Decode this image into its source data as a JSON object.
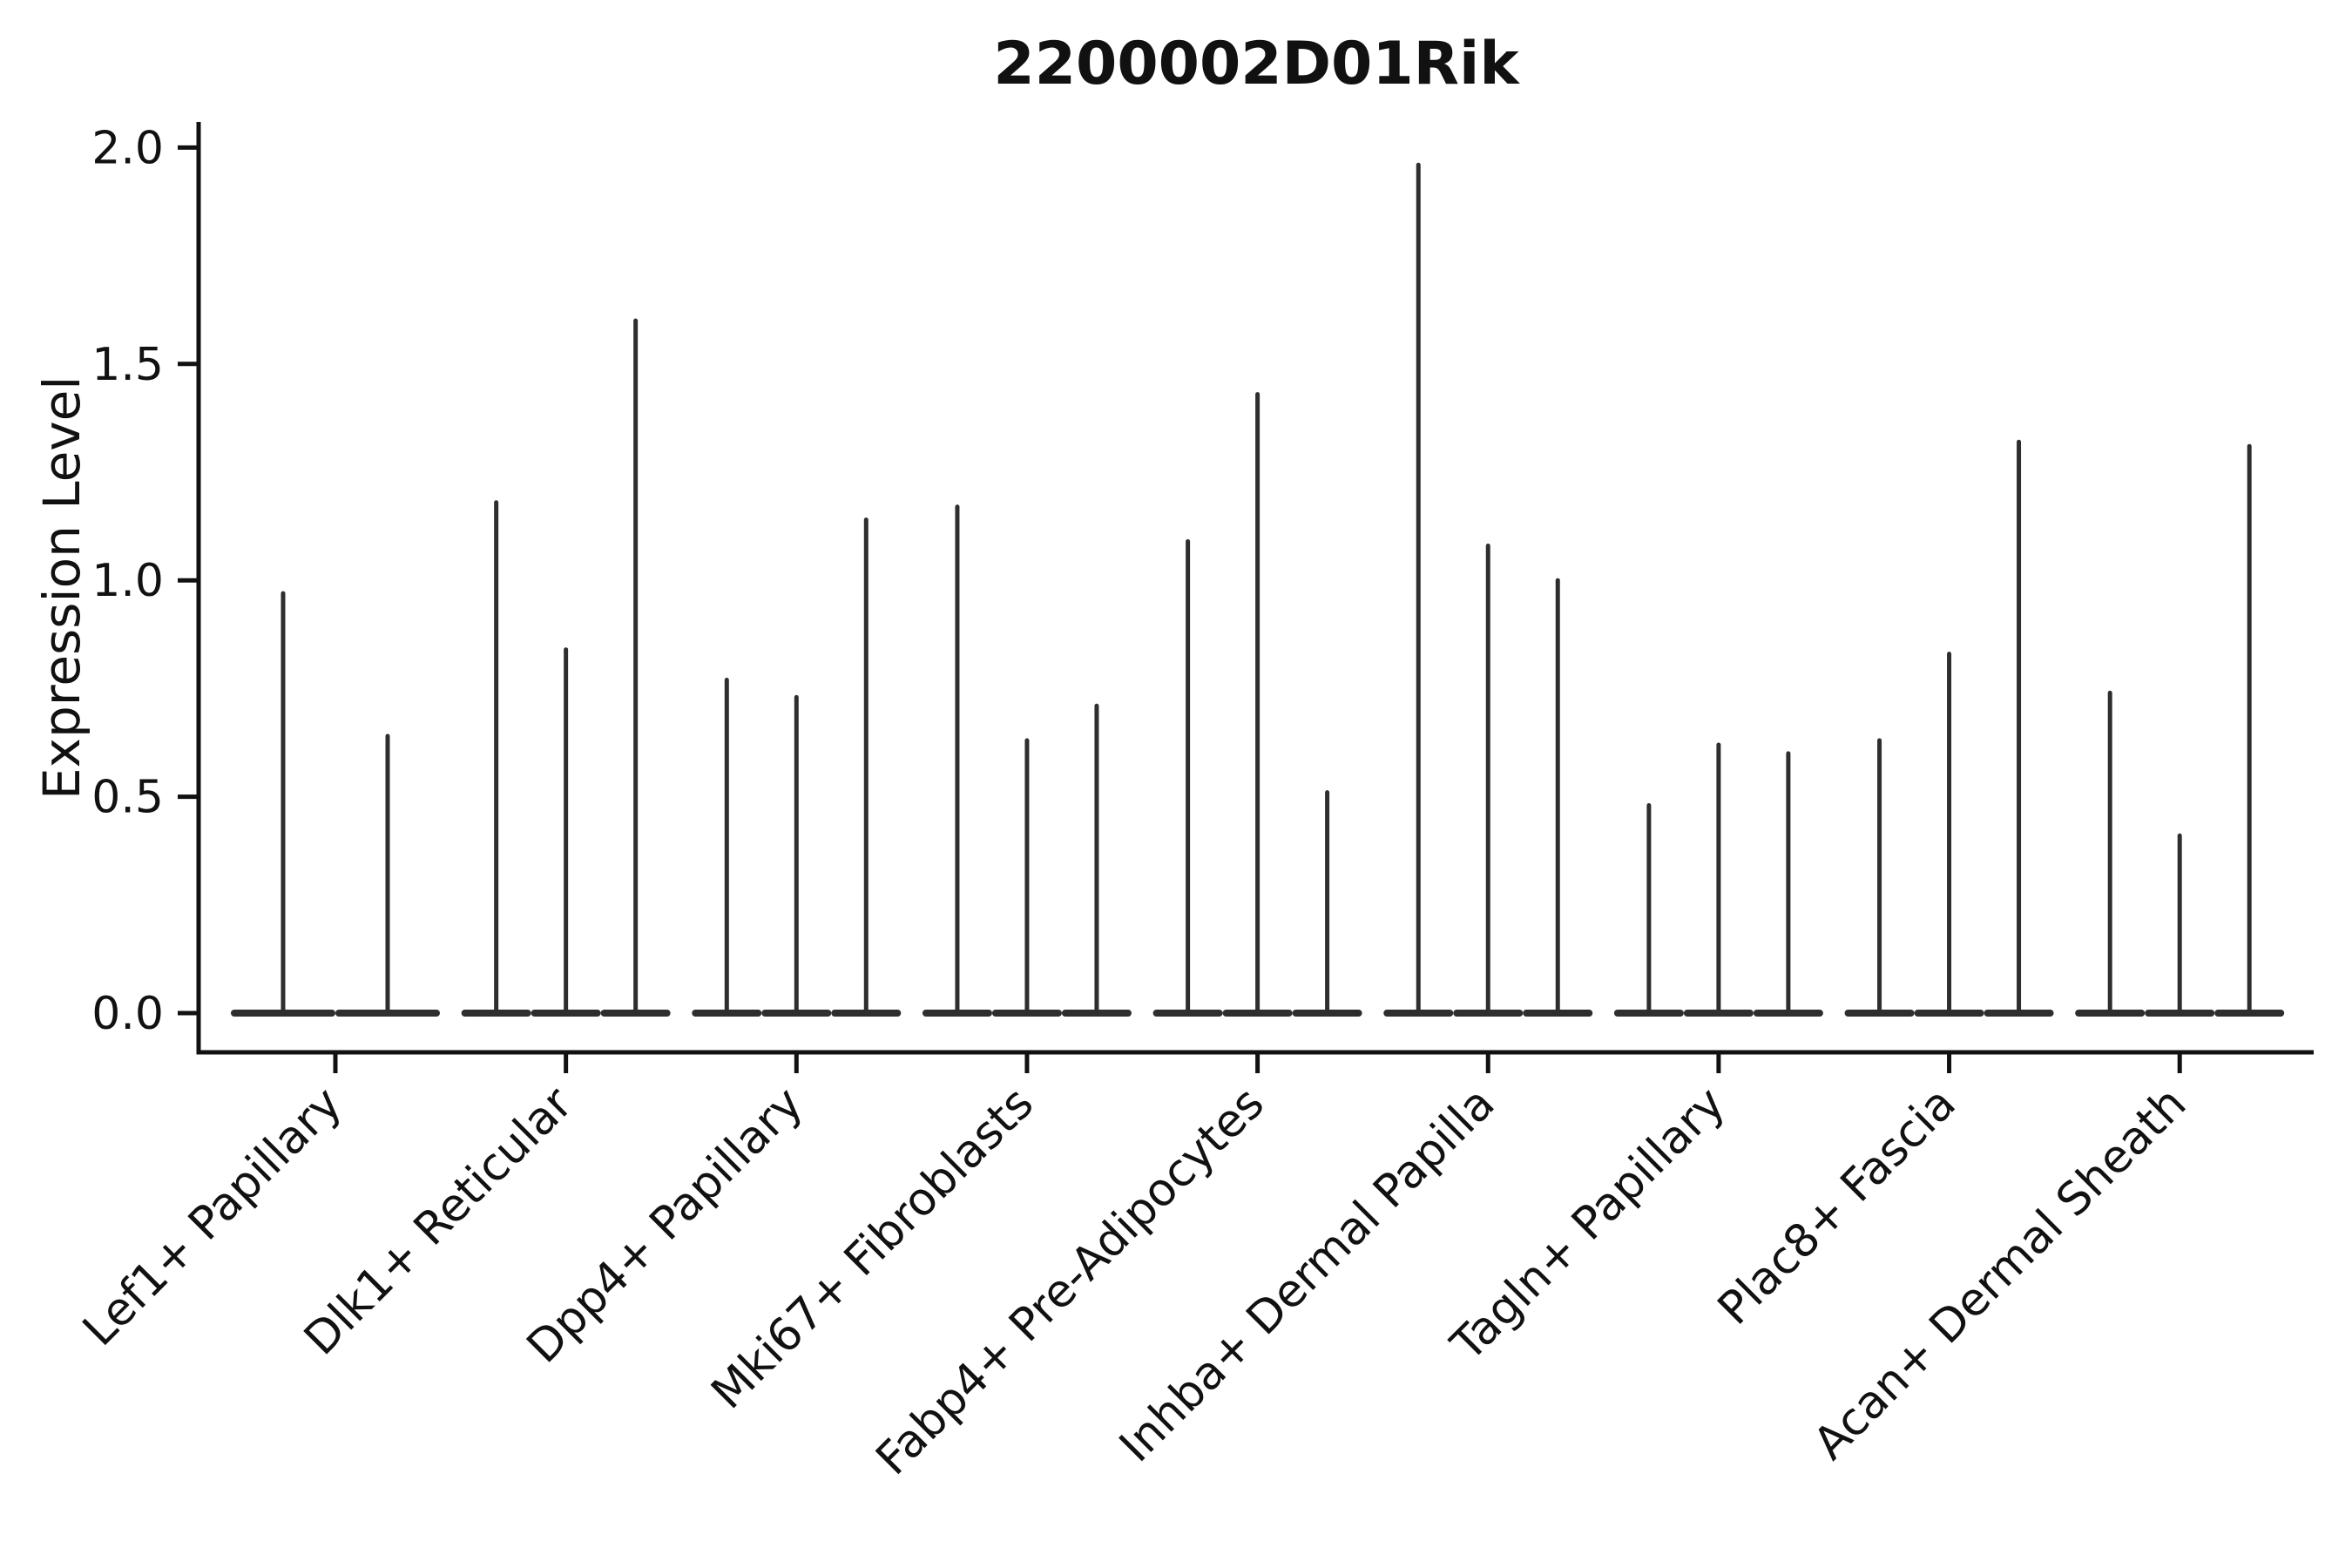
{
  "title": "2200002D01Rik",
  "ylabel": "Expression Level",
  "colors": {
    "axis": "#111111",
    "violin": "#2e2e2e",
    "background": "#ffffff"
  },
  "chart_data": {
    "type": "violin",
    "title": "2200002D01Rik",
    "xlabel": "",
    "ylabel": "Expression Level",
    "ylim": [
      -0.09,
      2.05
    ],
    "yticks": [
      0.0,
      0.5,
      1.0,
      1.5,
      2.0
    ],
    "ytick_labels": [
      "0.0",
      "0.5",
      "1.0",
      "1.5",
      "2.0"
    ],
    "grid": false,
    "legend_position": "none",
    "x_tick_label_rotation_deg": 45,
    "violin_style": "collapsed-at-zero-with-thin-spike-to-max",
    "categories": [
      {
        "label": "Lef1+ Papillary",
        "violin_max_values": [
          0.97,
          0.64
        ]
      },
      {
        "label": "Dlk1+ Reticular",
        "violin_max_values": [
          1.18,
          0.84,
          1.6
        ]
      },
      {
        "label": "Dpp4+ Papillary",
        "violin_max_values": [
          0.77,
          0.73,
          1.14
        ]
      },
      {
        "label": "Mki67+ Fibroblasts",
        "violin_max_values": [
          1.17,
          0.63,
          0.71
        ]
      },
      {
        "label": "Fabp4+ Pre-Adipocytes",
        "violin_max_values": [
          1.09,
          1.43,
          0.51
        ]
      },
      {
        "label": "Inhba+ Dermal Papilla",
        "violin_max_values": [
          1.96,
          1.08,
          1.0
        ]
      },
      {
        "label": "Tagln+ Papillary",
        "violin_max_values": [
          0.48,
          0.62,
          0.6
        ]
      },
      {
        "label": "Plac8+ Fascia",
        "violin_max_values": [
          0.63,
          0.83,
          1.32
        ]
      },
      {
        "label": "Acan+ Dermal Sheath",
        "violin_max_values": [
          0.74,
          0.41,
          1.31
        ]
      }
    ]
  }
}
